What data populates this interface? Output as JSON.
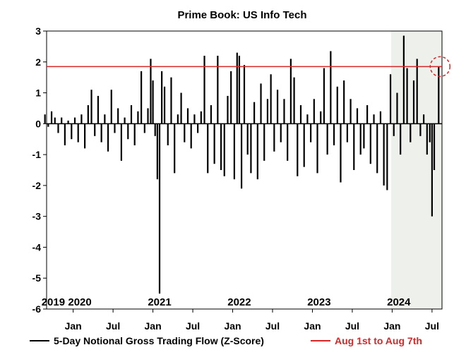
{
  "chart_data": {
    "type": "bar",
    "title": "Prime Book: US Info Tech",
    "xlabel": "",
    "ylabel": "",
    "ylim": [
      -6,
      3
    ],
    "y_ticks": [
      3,
      2,
      1,
      0,
      -1,
      -2,
      -3,
      -4,
      -5,
      -6
    ],
    "x_range": [
      "2019-09",
      "2024-08"
    ],
    "x_tick_labels": [
      {
        "label": "Jan",
        "date": "2020-01"
      },
      {
        "label": "Jul",
        "date": "2020-07"
      },
      {
        "label": "Jan",
        "date": "2021-01"
      },
      {
        "label": "Jul",
        "date": "2021-07"
      },
      {
        "label": "Jan",
        "date": "2022-01"
      },
      {
        "label": "Jul",
        "date": "2022-07"
      },
      {
        "label": "Jan",
        "date": "2023-01"
      },
      {
        "label": "Jul",
        "date": "2023-07"
      },
      {
        "label": "Jan",
        "date": "2024-01"
      },
      {
        "label": "Jul",
        "date": "2024-07"
      }
    ],
    "year_labels": [
      {
        "label": "2019",
        "date": "2019-10"
      },
      {
        "label": "2020",
        "date": "2020-02"
      },
      {
        "label": "2021",
        "date": "2021-02"
      },
      {
        "label": "2022",
        "date": "2022-02"
      },
      {
        "label": "2023",
        "date": "2023-02"
      },
      {
        "label": "2024",
        "date": "2024-02"
      }
    ],
    "highlight_region": {
      "start": "2024-01",
      "end": "2024-08",
      "color": "#eef0ec"
    },
    "reference_line": {
      "name": "Aug 1st to Aug 7th",
      "value": 1.85,
      "color": "#d62728"
    },
    "series": [
      {
        "name": "5-Day Notional Gross Trading Flow (Z-Score)",
        "color": "#000000",
        "points": [
          {
            "x": "2019-09",
            "y": 0.3
          },
          {
            "x": "2019-09",
            "y": -0.1
          },
          {
            "x": "2019-10",
            "y": 0.4
          },
          {
            "x": "2019-10",
            "y": 0.2
          },
          {
            "x": "2019-11",
            "y": -0.3
          },
          {
            "x": "2019-11",
            "y": 0.2
          },
          {
            "x": "2019-12",
            "y": -0.7
          },
          {
            "x": "2019-12",
            "y": 0.1
          },
          {
            "x": "2020-01",
            "y": -0.5
          },
          {
            "x": "2020-01",
            "y": 0.2
          },
          {
            "x": "2020-02",
            "y": -0.6
          },
          {
            "x": "2020-02",
            "y": 0.3
          },
          {
            "x": "2020-03",
            "y": -0.8
          },
          {
            "x": "2020-03",
            "y": 0.6
          },
          {
            "x": "2020-04",
            "y": 1.1
          },
          {
            "x": "2020-04",
            "y": -0.4
          },
          {
            "x": "2020-05",
            "y": 0.9
          },
          {
            "x": "2020-05",
            "y": -0.6
          },
          {
            "x": "2020-06",
            "y": 0.3
          },
          {
            "x": "2020-06",
            "y": -0.9
          },
          {
            "x": "2020-07",
            "y": 1.1
          },
          {
            "x": "2020-07",
            "y": -0.3
          },
          {
            "x": "2020-08",
            "y": 0.5
          },
          {
            "x": "2020-08",
            "y": -1.2
          },
          {
            "x": "2020-09",
            "y": 0.2
          },
          {
            "x": "2020-09",
            "y": -0.5
          },
          {
            "x": "2020-10",
            "y": 0.6
          },
          {
            "x": "2020-10",
            "y": -0.7
          },
          {
            "x": "2020-11",
            "y": 0.4
          },
          {
            "x": "2020-11",
            "y": 1.7
          },
          {
            "x": "2020-12",
            "y": -0.3
          },
          {
            "x": "2020-12",
            "y": 0.5
          },
          {
            "x": "2021-01",
            "y": 2.1
          },
          {
            "x": "2021-01",
            "y": 1.4
          },
          {
            "x": "2021-01",
            "y": -0.4
          },
          {
            "x": "2021-02",
            "y": -1.8
          },
          {
            "x": "2021-02",
            "y": -5.5
          },
          {
            "x": "2021-02",
            "y": 1.7
          },
          {
            "x": "2021-03",
            "y": 1.2
          },
          {
            "x": "2021-03",
            "y": -0.7
          },
          {
            "x": "2021-04",
            "y": 1.5
          },
          {
            "x": "2021-04",
            "y": -1.6
          },
          {
            "x": "2021-05",
            "y": 0.3
          },
          {
            "x": "2021-05",
            "y": 1.0
          },
          {
            "x": "2021-06",
            "y": -0.6
          },
          {
            "x": "2021-06",
            "y": 0.5
          },
          {
            "x": "2021-07",
            "y": -0.8
          },
          {
            "x": "2021-07",
            "y": 0.3
          },
          {
            "x": "2021-08",
            "y": -0.3
          },
          {
            "x": "2021-08",
            "y": 0.4
          },
          {
            "x": "2021-09",
            "y": 2.2
          },
          {
            "x": "2021-09",
            "y": -1.6
          },
          {
            "x": "2021-10",
            "y": 0.6
          },
          {
            "x": "2021-10",
            "y": -1.3
          },
          {
            "x": "2021-11",
            "y": 2.2
          },
          {
            "x": "2021-11",
            "y": -1.5
          },
          {
            "x": "2021-12",
            "y": -1.7
          },
          {
            "x": "2021-12",
            "y": 0.9
          },
          {
            "x": "2022-01",
            "y": 1.7
          },
          {
            "x": "2022-01",
            "y": -1.8
          },
          {
            "x": "2022-02",
            "y": 2.3
          },
          {
            "x": "2022-02",
            "y": 2.2
          },
          {
            "x": "2022-02",
            "y": -2.1
          },
          {
            "x": "2022-03",
            "y": 1.9
          },
          {
            "x": "2022-03",
            "y": -1.0
          },
          {
            "x": "2022-04",
            "y": -1.6
          },
          {
            "x": "2022-04",
            "y": 0.7
          },
          {
            "x": "2022-05",
            "y": -1.8
          },
          {
            "x": "2022-05",
            "y": 1.3
          },
          {
            "x": "2022-06",
            "y": -1.2
          },
          {
            "x": "2022-06",
            "y": 0.8
          },
          {
            "x": "2022-07",
            "y": 1.6
          },
          {
            "x": "2022-07",
            "y": -0.9
          },
          {
            "x": "2022-08",
            "y": 1.1
          },
          {
            "x": "2022-08",
            "y": -0.6
          },
          {
            "x": "2022-09",
            "y": 0.8
          },
          {
            "x": "2022-09",
            "y": -1.2
          },
          {
            "x": "2022-10",
            "y": 2.1
          },
          {
            "x": "2022-10",
            "y": 1.5
          },
          {
            "x": "2022-11",
            "y": -1.7
          },
          {
            "x": "2022-11",
            "y": 0.6
          },
          {
            "x": "2022-12",
            "y": -1.4
          },
          {
            "x": "2022-12",
            "y": 0.3
          },
          {
            "x": "2023-01",
            "y": -0.6
          },
          {
            "x": "2023-01",
            "y": 0.8
          },
          {
            "x": "2023-02",
            "y": -1.6
          },
          {
            "x": "2023-02",
            "y": 0.4
          },
          {
            "x": "2023-03",
            "y": 1.8
          },
          {
            "x": "2023-03",
            "y": -1.0
          },
          {
            "x": "2023-04",
            "y": 2.35
          },
          {
            "x": "2023-04",
            "y": -0.7
          },
          {
            "x": "2023-05",
            "y": 1.2
          },
          {
            "x": "2023-05",
            "y": -1.9
          },
          {
            "x": "2023-06",
            "y": 1.4
          },
          {
            "x": "2023-06",
            "y": -0.6
          },
          {
            "x": "2023-07",
            "y": 0.8
          },
          {
            "x": "2023-07",
            "y": -1.5
          },
          {
            "x": "2023-08",
            "y": 0.5
          },
          {
            "x": "2023-08",
            "y": -1.0
          },
          {
            "x": "2023-09",
            "y": -0.8
          },
          {
            "x": "2023-09",
            "y": 0.6
          },
          {
            "x": "2023-10",
            "y": -1.3
          },
          {
            "x": "2023-10",
            "y": 0.3
          },
          {
            "x": "2023-11",
            "y": -1.6
          },
          {
            "x": "2023-11",
            "y": 0.4
          },
          {
            "x": "2023-12",
            "y": -2.0
          },
          {
            "x": "2023-12",
            "y": -2.15
          },
          {
            "x": "2024-01",
            "y": 1.6
          },
          {
            "x": "2024-01",
            "y": -0.4
          },
          {
            "x": "2024-02",
            "y": 1.0
          },
          {
            "x": "2024-02",
            "y": -1.0
          },
          {
            "x": "2024-03",
            "y": 2.85
          },
          {
            "x": "2024-03",
            "y": 1.8
          },
          {
            "x": "2024-04",
            "y": -0.6
          },
          {
            "x": "2024-04",
            "y": 1.4
          },
          {
            "x": "2024-05",
            "y": 2.1
          },
          {
            "x": "2024-05",
            "y": -0.4
          },
          {
            "x": "2024-06",
            "y": 0.3
          },
          {
            "x": "2024-06",
            "y": -1.0
          },
          {
            "x": "2024-07",
            "y": -0.6
          },
          {
            "x": "2024-07",
            "y": -3.0
          },
          {
            "x": "2024-07",
            "y": -1.5
          },
          {
            "x": "2024-08",
            "y": 1.85
          }
        ]
      }
    ],
    "legend": {
      "placement": "bottom",
      "items": [
        {
          "label": "5-Day Notional Gross Trading Flow (Z-Score)",
          "color": "#000000"
        },
        {
          "label": "Aug 1st to Aug 7th",
          "color": "#d62728"
        }
      ]
    },
    "grid": false
  }
}
